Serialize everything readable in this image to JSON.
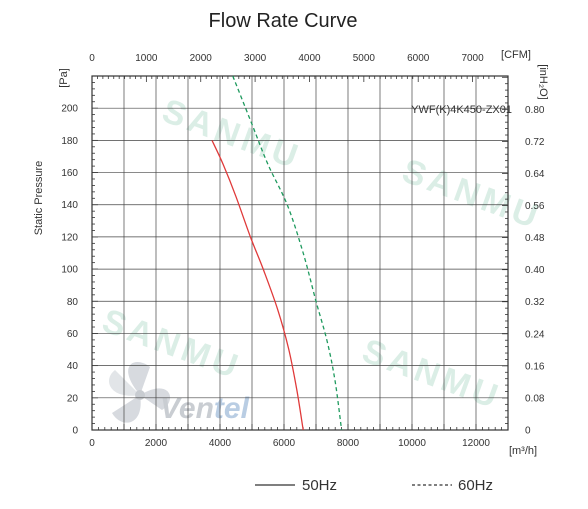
{
  "chart_data": {
    "type": "line",
    "title": "Flow Rate Curve",
    "model_label": "YWF(K)4K450-ZX01",
    "brand": {
      "text_part1": "Ven",
      "text_part2": "tel"
    },
    "watermark": "SANMU",
    "x_axis_bottom": {
      "unit": "[m³/h]",
      "range": [
        0,
        13000
      ],
      "ticks": [
        0,
        2000,
        4000,
        6000,
        8000,
        10000,
        12000
      ]
    },
    "x_axis_top": {
      "unit": "[CFM]",
      "ticks": [
        0,
        1000,
        2000,
        3000,
        4000,
        5000,
        6000,
        7000
      ]
    },
    "y_axis_left": {
      "label": "Static Pressure",
      "unit": "[Pa]",
      "range": [
        0,
        220
      ],
      "ticks": [
        0,
        20,
        40,
        60,
        80,
        100,
        120,
        140,
        160,
        180,
        200
      ]
    },
    "y_axis_right": {
      "unit": "[inH₂O]",
      "ticks": [
        "0",
        "0.08",
        "0.16",
        "0.24",
        "0.32",
        "0.40",
        "0.48",
        "0.56",
        "0.64",
        "0.72",
        "0.80"
      ]
    },
    "grid": true,
    "legend_position": "bottom",
    "series": [
      {
        "name": "50Hz",
        "color": "#e03a3a",
        "style": "solid",
        "points": [
          [
            3750,
            180
          ],
          [
            4100,
            165
          ],
          [
            4500,
            145
          ],
          [
            4950,
            120
          ],
          [
            5350,
            100
          ],
          [
            5800,
            75
          ],
          [
            6150,
            50
          ],
          [
            6400,
            25
          ],
          [
            6600,
            0
          ]
        ]
      },
      {
        "name": "60Hz",
        "color": "#1e9a5e",
        "style": "dashed",
        "points": [
          [
            4400,
            220
          ],
          [
            5000,
            190
          ],
          [
            5500,
            165
          ],
          [
            6100,
            140
          ],
          [
            6600,
            110
          ],
          [
            7000,
            80
          ],
          [
            7350,
            55
          ],
          [
            7600,
            30
          ],
          [
            7800,
            0
          ]
        ]
      }
    ]
  }
}
